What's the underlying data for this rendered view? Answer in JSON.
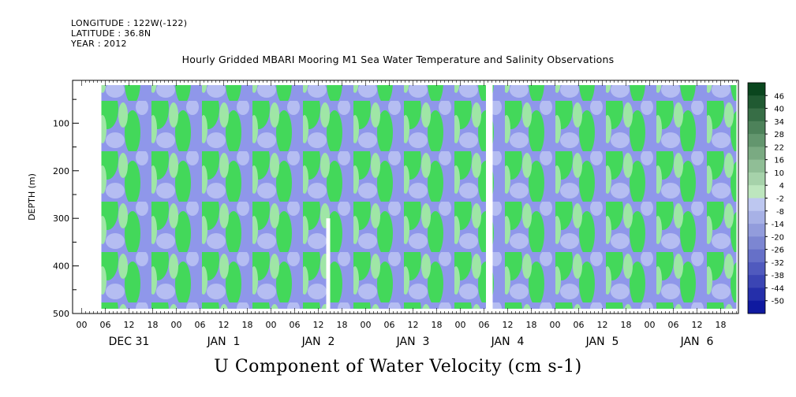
{
  "header": {
    "longitude": "LONGITUDE : 122W(-122)",
    "latitude": "LATITUDE : 36.8N",
    "year": "YEAR : 2012"
  },
  "chart_data": {
    "type": "heatmap",
    "title": "Hourly Gridded MBARI Mooring M1 Sea Water Temperature and Salinity Observations",
    "xlabel": "U Component of Water Velocity (cm s-1)",
    "ylabel": "DEPTH (m)",
    "y_ticks": [
      100,
      200,
      300,
      400,
      500
    ],
    "ylim": [
      500,
      10
    ],
    "x_hour_ticks": [
      "00",
      "06",
      "12",
      "18",
      "00",
      "06",
      "12",
      "18",
      "00",
      "06",
      "12",
      "18",
      "00",
      "06",
      "12",
      "18",
      "00",
      "06",
      "12",
      "18",
      "00",
      "06",
      "12",
      "18",
      "00",
      "06",
      "12",
      "18"
    ],
    "x_day_labels": [
      "DEC 31",
      "JAN  1",
      "JAN  2",
      "JAN  3",
      "JAN  4",
      "JAN  5",
      "JAN  6"
    ],
    "data_depth_range_m": [
      20,
      490
    ],
    "colorbar": {
      "labels": [
        "46",
        "40",
        "34",
        "28",
        "22",
        "16",
        "10",
        "4",
        "-2",
        "-8",
        "-14",
        "-20",
        "-26",
        "-32",
        "-38",
        "-44",
        "-50"
      ]
    },
    "colors": {
      "green": "#43d85a",
      "blue": "#8f97ea",
      "light_blue": "#b5bdf2",
      "light_green": "#9fe6a6"
    }
  }
}
